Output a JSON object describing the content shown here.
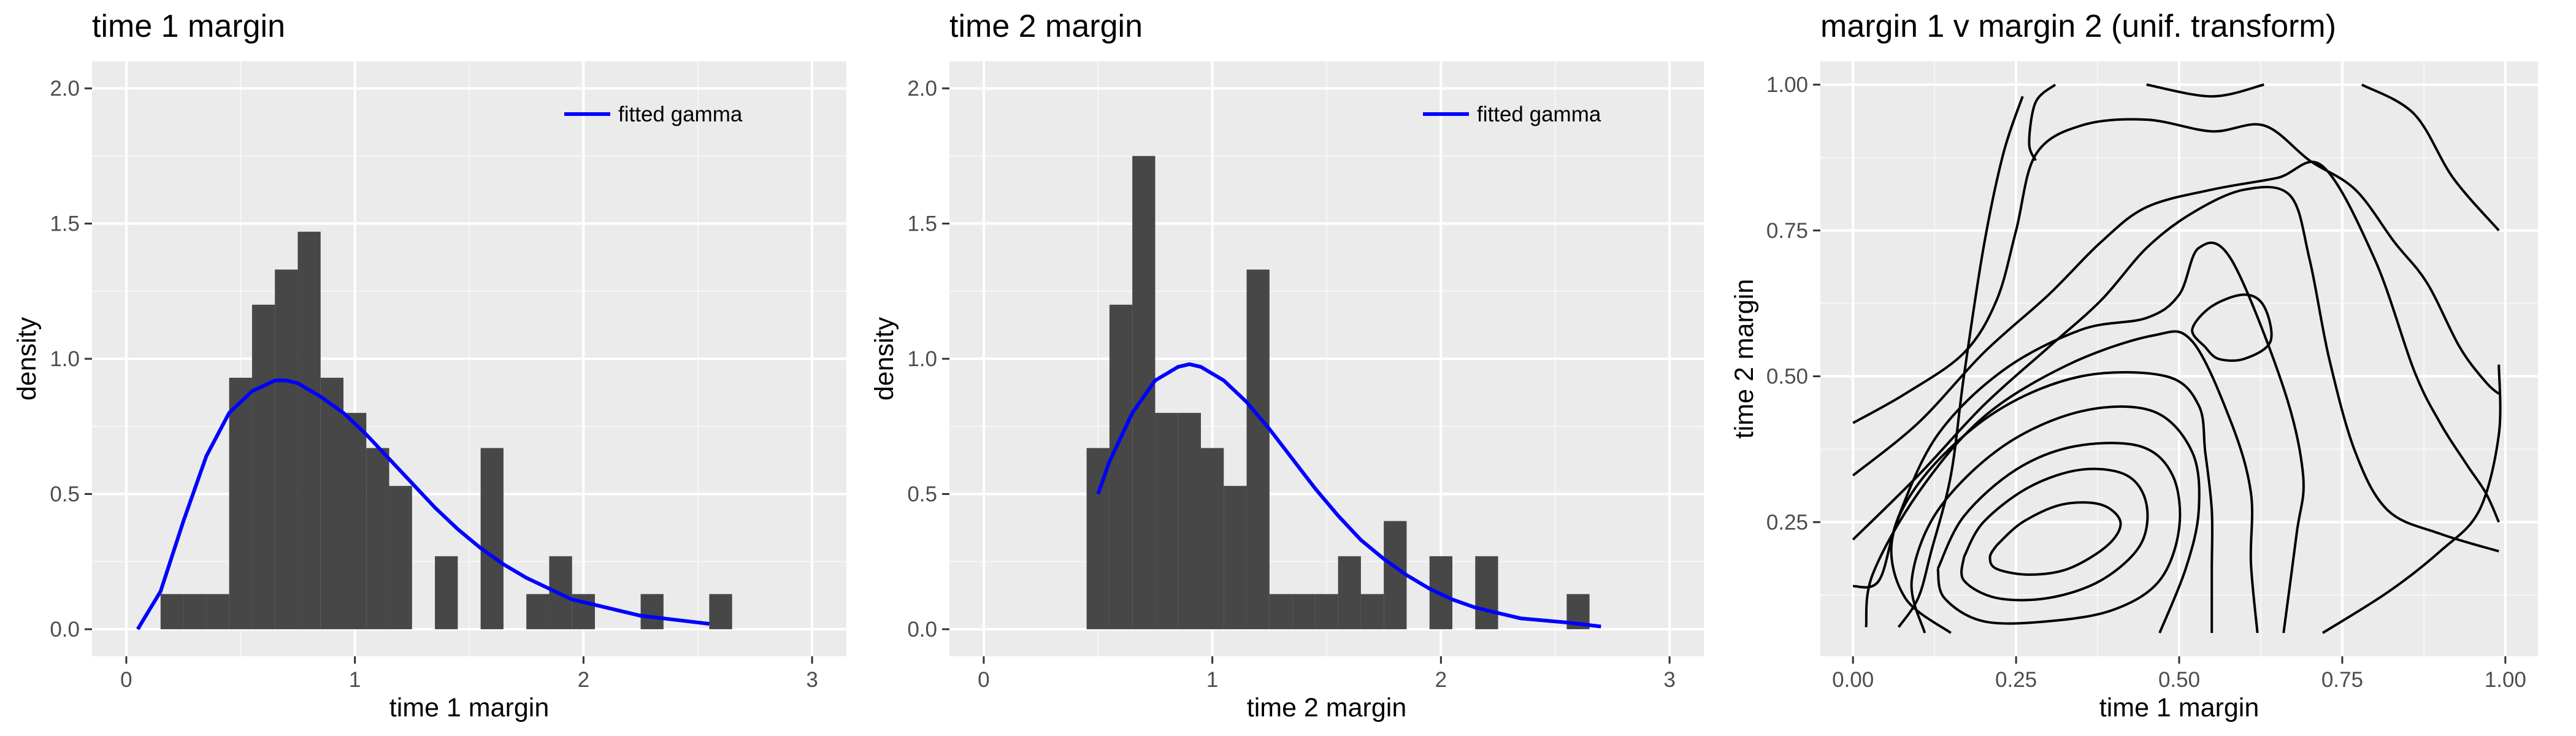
{
  "chart_data": [
    {
      "type": "bar",
      "title": "time 1 margin",
      "xlabel": "time 1 margin",
      "ylabel": "density",
      "xlim": [
        -0.15,
        3.15
      ],
      "ylim": [
        -0.1,
        2.1
      ],
      "x_ticks": [
        0,
        1,
        2,
        3
      ],
      "x_tick_labels": [
        "0",
        "1",
        "2",
        "3"
      ],
      "y_ticks": [
        0,
        0.5,
        1,
        1.5,
        2
      ],
      "y_tick_labels": [
        "0.0",
        "0.5",
        "1.0",
        "1.5",
        "2.0"
      ],
      "grid": true,
      "legend": {
        "position": "top-right",
        "entries": [
          {
            "label": "fitted gamma",
            "color": "#0000ff"
          }
        ]
      },
      "histogram": {
        "bin_width": 0.1,
        "bin_starts": [
          0.15,
          0.25,
          0.35,
          0.45,
          0.55,
          0.65,
          0.75,
          0.85,
          0.95,
          1.05,
          1.15,
          1.25,
          1.35,
          1.45,
          1.55,
          1.65,
          1.75,
          1.85,
          1.95,
          2.05,
          2.15,
          2.25,
          2.35,
          2.45,
          2.55
        ],
        "values": [
          0.13,
          0.13,
          0.13,
          0.93,
          1.2,
          1.33,
          1.47,
          0.93,
          0.8,
          0.67,
          0.53,
          0,
          0.27,
          0,
          0.67,
          0,
          0.13,
          0.27,
          0.13,
          0,
          0,
          0.13,
          0,
          0,
          0.13
        ],
        "color": "#474747"
      },
      "series": [
        {
          "name": "fitted gamma",
          "color": "#0000ff",
          "x": [
            0.05,
            0.15,
            0.25,
            0.35,
            0.45,
            0.55,
            0.65,
            0.7,
            0.75,
            0.85,
            0.95,
            1.05,
            1.15,
            1.25,
            1.35,
            1.45,
            1.55,
            1.65,
            1.75,
            1.85,
            1.95,
            2.05,
            2.25,
            2.45,
            2.55
          ],
          "y": [
            0.0,
            0.14,
            0.4,
            0.64,
            0.8,
            0.88,
            0.92,
            0.92,
            0.91,
            0.86,
            0.8,
            0.72,
            0.63,
            0.54,
            0.45,
            0.37,
            0.3,
            0.24,
            0.19,
            0.15,
            0.11,
            0.09,
            0.05,
            0.03,
            0.02
          ]
        }
      ]
    },
    {
      "type": "bar",
      "title": "time 2 margin",
      "xlabel": "time 2 margin",
      "ylabel": "density",
      "xlim": [
        -0.15,
        3.15
      ],
      "ylim": [
        -0.1,
        2.1
      ],
      "x_ticks": [
        0,
        1,
        2,
        3
      ],
      "x_tick_labels": [
        "0",
        "1",
        "2",
        "3"
      ],
      "y_ticks": [
        0,
        0.5,
        1,
        1.5,
        2
      ],
      "y_tick_labels": [
        "0.0",
        "0.5",
        "1.0",
        "1.5",
        "2.0"
      ],
      "grid": true,
      "legend": {
        "position": "top-right",
        "entries": [
          {
            "label": "fitted gamma",
            "color": "#0000ff"
          }
        ]
      },
      "histogram": {
        "bin_width": 0.1,
        "bin_starts": [
          0.45,
          0.55,
          0.65,
          0.75,
          0.85,
          0.95,
          1.05,
          1.15,
          1.25,
          1.35,
          1.45,
          1.55,
          1.65,
          1.75,
          1.85,
          1.95,
          2.05,
          2.15,
          2.25,
          2.35,
          2.45,
          2.55,
          2.65
        ],
        "values": [
          0.67,
          1.2,
          1.75,
          0.8,
          0.8,
          0.67,
          0.53,
          1.33,
          0.13,
          0.13,
          0.13,
          0.27,
          0.13,
          0.4,
          0,
          0.27,
          0,
          0.27,
          0,
          0,
          0,
          0.13,
          0
        ],
        "color": "#474747"
      },
      "series": [
        {
          "name": "fitted gamma",
          "color": "#0000ff",
          "x": [
            0.5,
            0.55,
            0.65,
            0.75,
            0.85,
            0.9,
            0.95,
            1.05,
            1.15,
            1.25,
            1.35,
            1.45,
            1.55,
            1.65,
            1.75,
            1.85,
            1.95,
            2.05,
            2.15,
            2.25,
            2.35,
            2.55,
            2.7
          ],
          "y": [
            0.5,
            0.62,
            0.8,
            0.92,
            0.97,
            0.98,
            0.97,
            0.92,
            0.84,
            0.74,
            0.63,
            0.52,
            0.42,
            0.33,
            0.26,
            0.2,
            0.15,
            0.11,
            0.08,
            0.06,
            0.04,
            0.025,
            0.01
          ]
        }
      ]
    },
    {
      "type": "contour",
      "title": "margin 1 v margin 2 (unif. transform)",
      "xlabel": "time 1 margin",
      "ylabel": "time 2 margin",
      "xlim": [
        -0.05,
        1.05
      ],
      "ylim": [
        0.02,
        1.04
      ],
      "x_ticks": [
        0,
        0.25,
        0.5,
        0.75,
        1
      ],
      "x_tick_labels": [
        "0.00",
        "0.25",
        "0.50",
        "0.75",
        "1.00"
      ],
      "y_ticks": [
        0.25,
        0.5,
        0.75,
        1
      ],
      "y_tick_labels": [
        "0.25",
        "0.50",
        "0.75",
        "1.00"
      ],
      "grid": true,
      "line_color": "#000000",
      "contours": [
        [
          [
            0.22,
            0.21
          ],
          [
            0.26,
            0.25
          ],
          [
            0.32,
            0.28
          ],
          [
            0.38,
            0.28
          ],
          [
            0.41,
            0.25
          ],
          [
            0.39,
            0.21
          ],
          [
            0.33,
            0.17
          ],
          [
            0.27,
            0.16
          ],
          [
            0.22,
            0.17
          ],
          [
            0.21,
            0.19
          ],
          [
            0.22,
            0.21
          ]
        ],
        [
          [
            0.17,
            0.19
          ],
          [
            0.2,
            0.25
          ],
          [
            0.27,
            0.31
          ],
          [
            0.35,
            0.34
          ],
          [
            0.42,
            0.33
          ],
          [
            0.45,
            0.28
          ],
          [
            0.44,
            0.21
          ],
          [
            0.38,
            0.15
          ],
          [
            0.3,
            0.12
          ],
          [
            0.22,
            0.12
          ],
          [
            0.17,
            0.15
          ],
          [
            0.17,
            0.19
          ]
        ],
        [
          [
            0.13,
            0.17
          ],
          [
            0.17,
            0.26
          ],
          [
            0.25,
            0.34
          ],
          [
            0.34,
            0.38
          ],
          [
            0.44,
            0.38
          ],
          [
            0.49,
            0.33
          ],
          [
            0.5,
            0.24
          ],
          [
            0.47,
            0.15
          ],
          [
            0.4,
            0.1
          ],
          [
            0.3,
            0.08
          ],
          [
            0.2,
            0.08
          ],
          [
            0.14,
            0.12
          ],
          [
            0.13,
            0.17
          ]
        ],
        [
          [
            0.11,
            0.06
          ],
          [
            0.09,
            0.15
          ],
          [
            0.13,
            0.27
          ],
          [
            0.23,
            0.38
          ],
          [
            0.35,
            0.44
          ],
          [
            0.46,
            0.44
          ],
          [
            0.52,
            0.37
          ],
          [
            0.53,
            0.27
          ],
          [
            0.51,
            0.17
          ],
          [
            0.47,
            0.06
          ]
        ],
        [
          [
            0.15,
            0.06
          ],
          [
            0.08,
            0.12
          ],
          [
            0.06,
            0.22
          ],
          [
            0.11,
            0.33
          ],
          [
            0.22,
            0.44
          ],
          [
            0.35,
            0.5
          ],
          [
            0.48,
            0.5
          ],
          [
            0.53,
            0.45
          ],
          [
            0.54,
            0.37
          ],
          [
            0.55,
            0.27
          ],
          [
            0.55,
            0.17
          ],
          [
            0.55,
            0.06
          ]
        ],
        [
          [
            0.02,
            0.07
          ],
          [
            0.03,
            0.16
          ],
          [
            0.1,
            0.3
          ],
          [
            0.2,
            0.43
          ],
          [
            0.33,
            0.52
          ],
          [
            0.46,
            0.57
          ],
          [
            0.52,
            0.56
          ],
          [
            0.58,
            0.42
          ],
          [
            0.61,
            0.3
          ],
          [
            0.61,
            0.18
          ],
          [
            0.62,
            0.06
          ]
        ],
        [
          [
            0.0,
            0.14
          ],
          [
            0.04,
            0.15
          ],
          [
            0.07,
            0.26
          ],
          [
            0.13,
            0.4
          ],
          [
            0.23,
            0.51
          ],
          [
            0.35,
            0.58
          ],
          [
            0.45,
            0.6
          ],
          [
            0.5,
            0.64
          ],
          [
            0.53,
            0.72
          ],
          [
            0.58,
            0.7
          ],
          [
            0.66,
            0.48
          ],
          [
            0.69,
            0.33
          ],
          [
            0.68,
            0.23
          ],
          [
            0.66,
            0.06
          ]
        ],
        [
          [
            0.0,
            0.22
          ],
          [
            0.1,
            0.33
          ],
          [
            0.2,
            0.45
          ],
          [
            0.3,
            0.55
          ],
          [
            0.38,
            0.63
          ],
          [
            0.45,
            0.72
          ],
          [
            0.52,
            0.78
          ],
          [
            0.6,
            0.82
          ],
          [
            0.67,
            0.81
          ],
          [
            0.7,
            0.7
          ],
          [
            0.73,
            0.53
          ],
          [
            0.77,
            0.37
          ],
          [
            0.82,
            0.27
          ],
          [
            0.9,
            0.23
          ],
          [
            0.99,
            0.2
          ]
        ],
        [
          [
            0.0,
            0.33
          ],
          [
            0.1,
            0.42
          ],
          [
            0.2,
            0.54
          ],
          [
            0.3,
            0.64
          ],
          [
            0.38,
            0.73
          ],
          [
            0.45,
            0.79
          ],
          [
            0.55,
            0.82
          ],
          [
            0.65,
            0.84
          ],
          [
            0.72,
            0.86
          ],
          [
            0.8,
            0.7
          ],
          [
            0.86,
            0.51
          ],
          [
            0.9,
            0.42
          ],
          [
            0.94,
            0.35
          ],
          [
            0.97,
            0.3
          ],
          [
            0.99,
            0.25
          ]
        ],
        [
          [
            0.0,
            0.42
          ],
          [
            0.08,
            0.47
          ],
          [
            0.17,
            0.54
          ],
          [
            0.22,
            0.63
          ],
          [
            0.25,
            0.75
          ],
          [
            0.28,
            0.88
          ],
          [
            0.35,
            0.93
          ],
          [
            0.45,
            0.94
          ],
          [
            0.55,
            0.92
          ],
          [
            0.63,
            0.93
          ],
          [
            0.7,
            0.87
          ],
          [
            0.77,
            0.82
          ],
          [
            0.83,
            0.73
          ],
          [
            0.88,
            0.66
          ],
          [
            0.93,
            0.55
          ],
          [
            0.97,
            0.49
          ],
          [
            0.99,
            0.47
          ]
        ],
        [
          [
            0.07,
            0.07
          ],
          [
            0.1,
            0.12
          ],
          [
            0.12,
            0.2
          ],
          [
            0.15,
            0.33
          ],
          [
            0.17,
            0.5
          ],
          [
            0.2,
            0.72
          ],
          [
            0.23,
            0.88
          ],
          [
            0.26,
            0.98
          ]
        ],
        [
          [
            0.31,
            1.0
          ],
          [
            0.28,
            0.97
          ],
          [
            0.27,
            0.9
          ],
          [
            0.28,
            0.87
          ]
        ],
        [
          [
            0.45,
            1.0
          ],
          [
            0.55,
            0.98
          ],
          [
            0.63,
            1.0
          ]
        ],
        [
          [
            0.78,
            1.0
          ],
          [
            0.86,
            0.95
          ],
          [
            0.92,
            0.84
          ],
          [
            0.99,
            0.75
          ]
        ],
        [
          [
            0.72,
            0.06
          ],
          [
            0.82,
            0.13
          ],
          [
            0.9,
            0.2
          ],
          [
            0.96,
            0.27
          ],
          [
            0.99,
            0.4
          ],
          [
            0.99,
            0.52
          ]
        ],
        [
          [
            0.54,
            0.55
          ],
          [
            0.52,
            0.58
          ],
          [
            0.55,
            0.62
          ],
          [
            0.6,
            0.64
          ],
          [
            0.63,
            0.62
          ],
          [
            0.64,
            0.56
          ],
          [
            0.6,
            0.53
          ],
          [
            0.56,
            0.53
          ],
          [
            0.54,
            0.55
          ]
        ]
      ]
    }
  ]
}
